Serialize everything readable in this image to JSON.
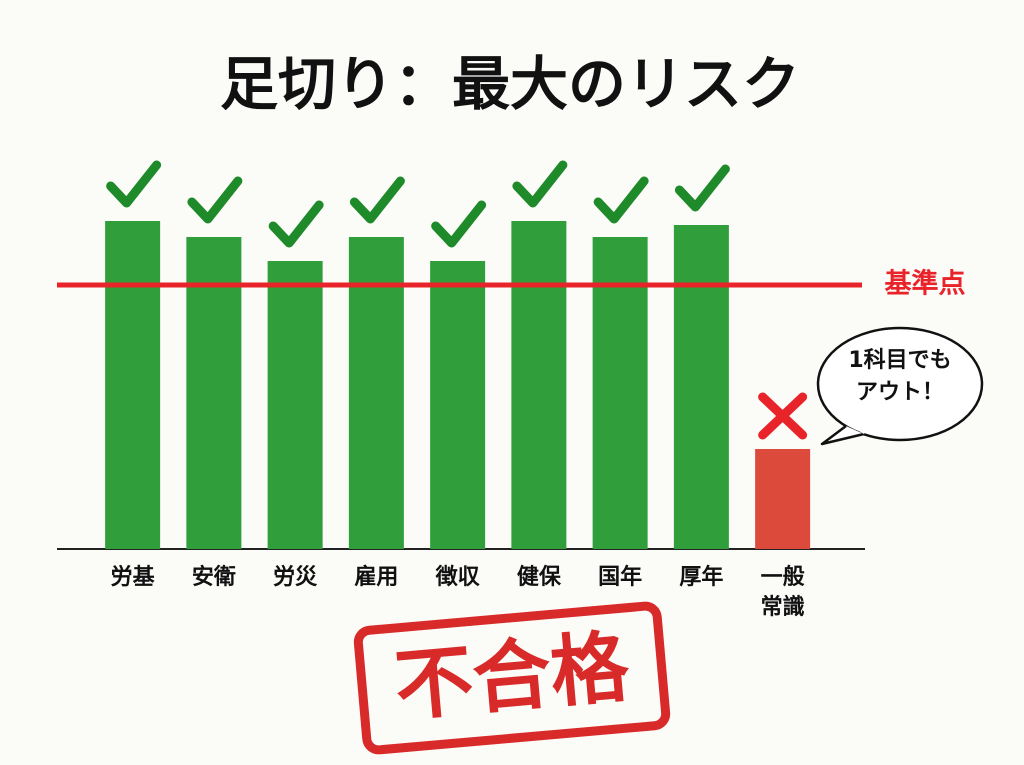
{
  "chart_data": {
    "type": "bar",
    "title": "足切り：最大のリスク",
    "categories": [
      "労基",
      "安衛",
      "労災",
      "雇用",
      "徴収",
      "健保",
      "国年",
      "厚年",
      "一般\n常識"
    ],
    "values": [
      82,
      78,
      72,
      78,
      72,
      82,
      78,
      81,
      25
    ],
    "colors": [
      "#2f9e3b",
      "#2f9e3b",
      "#2f9e3b",
      "#2f9e3b",
      "#2f9e3b",
      "#2f9e3b",
      "#2f9e3b",
      "#2f9e3b",
      "#dc4a3c"
    ],
    "ylim": [
      0,
      100
    ],
    "threshold": {
      "value": 66,
      "label": "基準点",
      "color": "#e8242a"
    },
    "callout": "1科目でも\nアウト！",
    "stamp": "不合格"
  }
}
